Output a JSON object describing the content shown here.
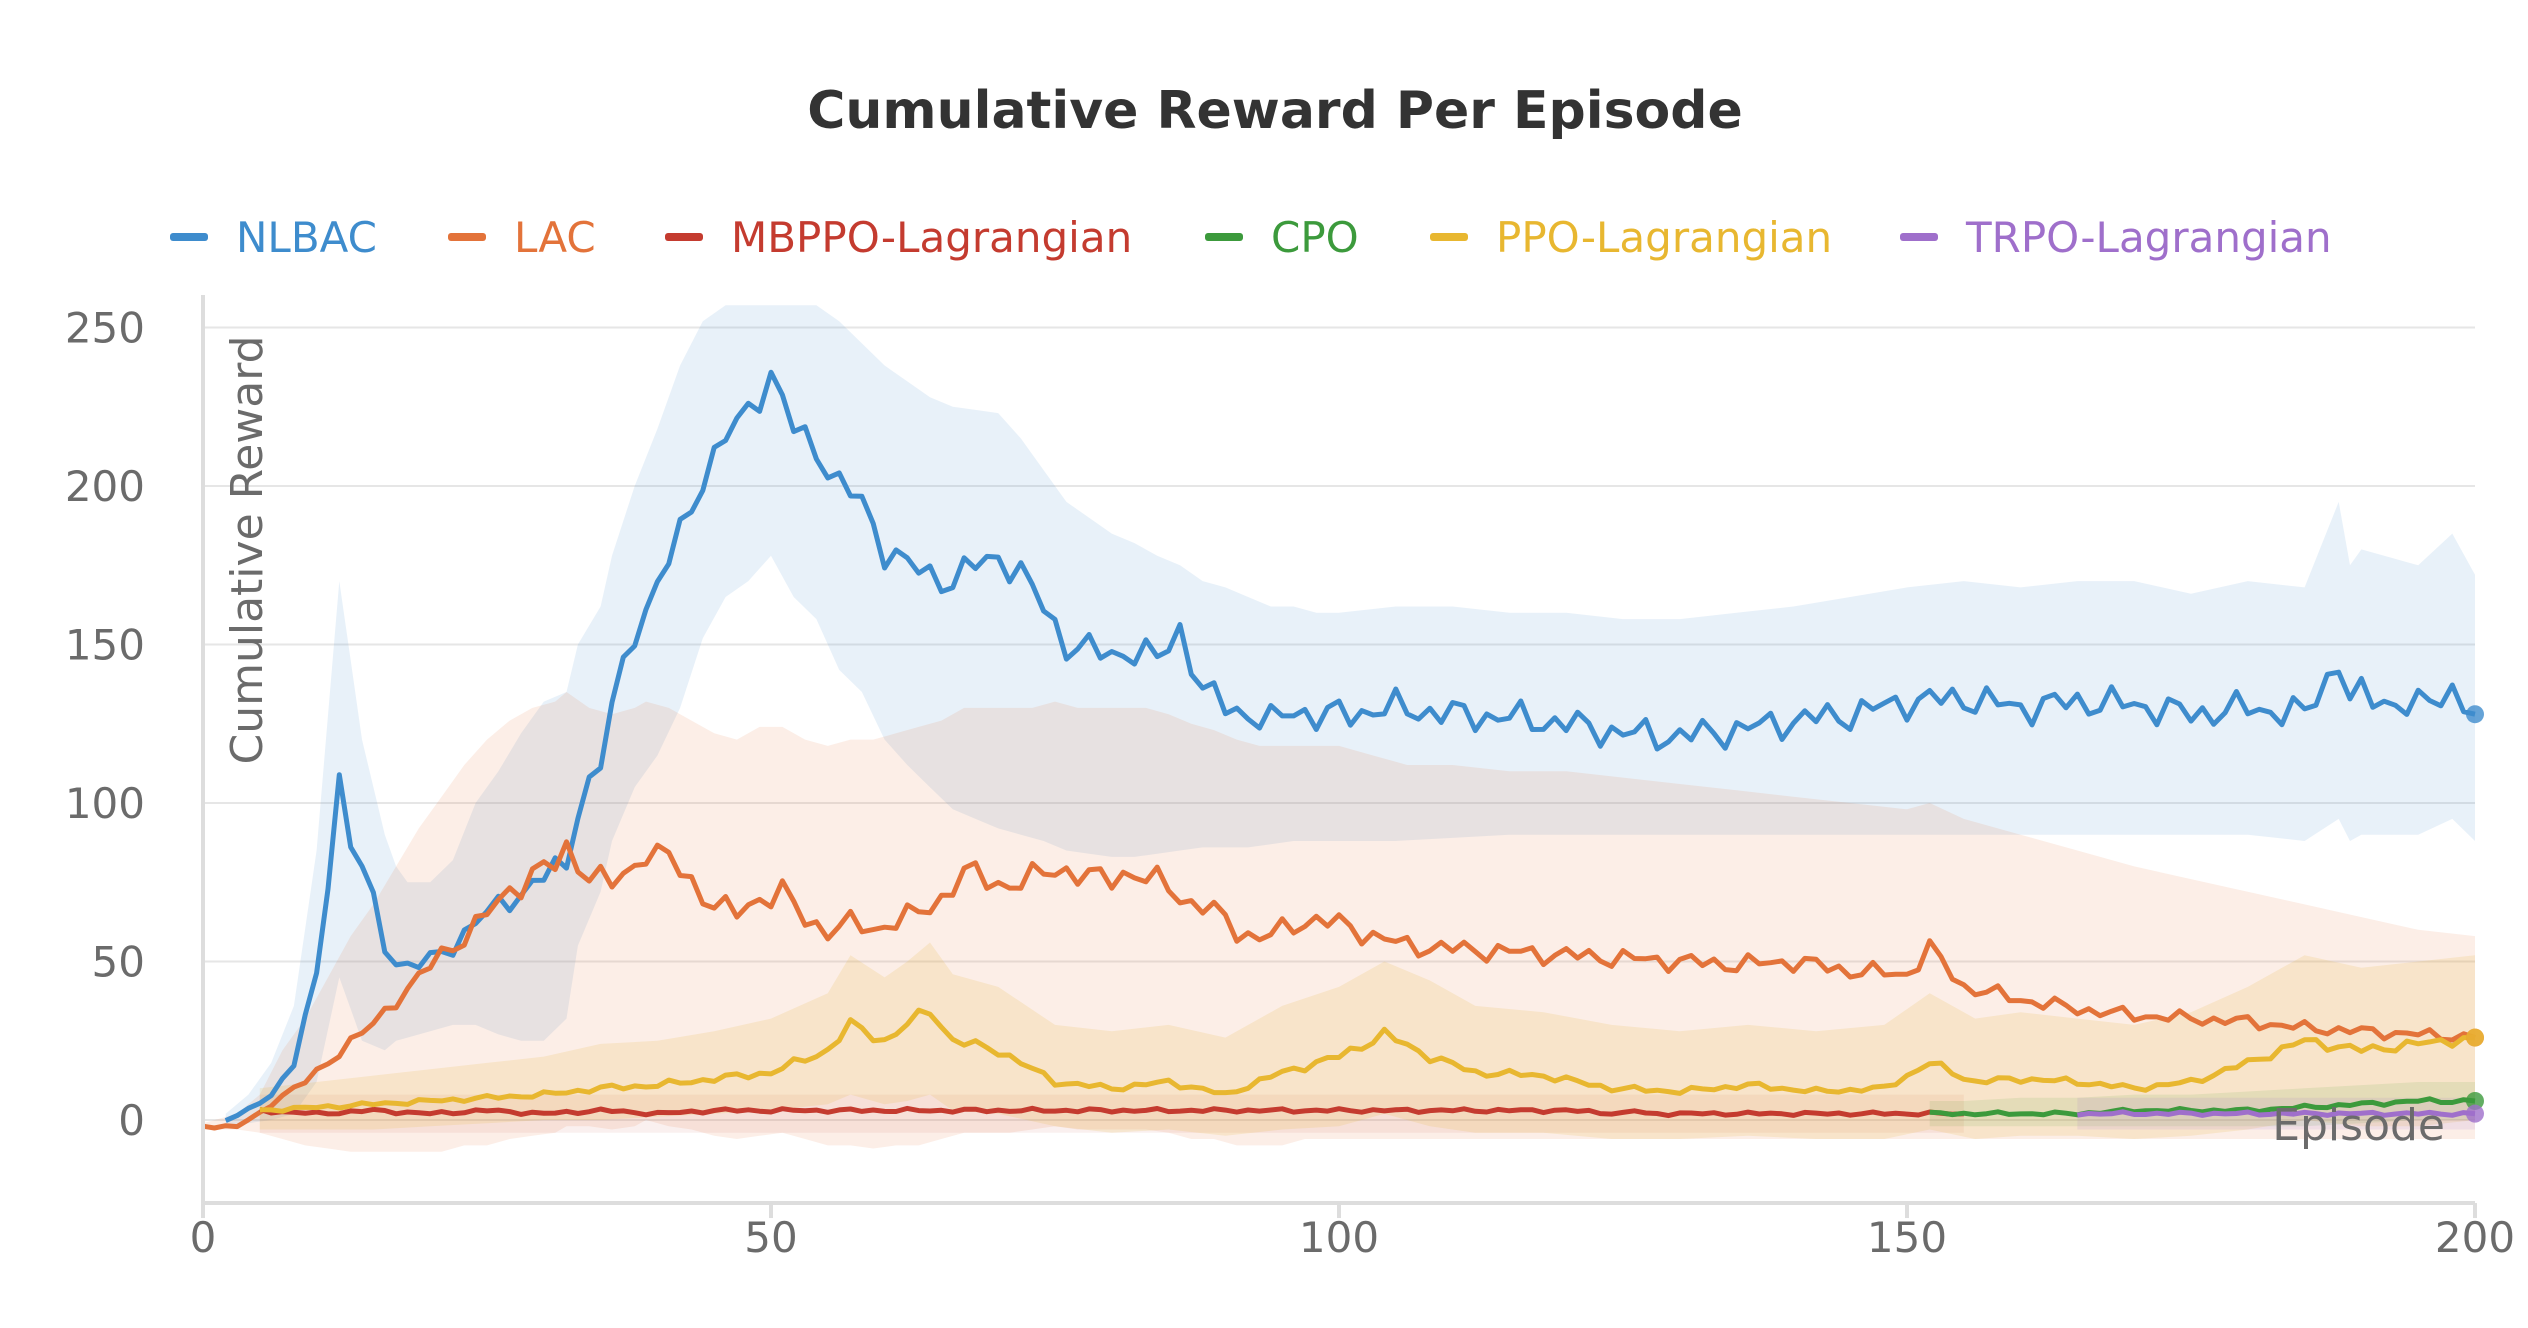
{
  "chart_data": {
    "type": "line",
    "title": "Cumulative Reward Per Episode",
    "xlabel": "Episode",
    "ylabel": "Cumulative Reward",
    "xlim": [
      0,
      200
    ],
    "ylim": [
      -12,
      258
    ],
    "xticks": [
      0,
      50,
      100,
      150,
      200
    ],
    "xtick_labels": [
      "0",
      "50",
      "100",
      "150",
      "200"
    ],
    "yticks": [
      0,
      50,
      100,
      150,
      200,
      250
    ],
    "ytick_labels": [
      "0",
      "50",
      "100",
      "150",
      "200",
      "250"
    ],
    "grid": true,
    "legend_position": "top",
    "series": [
      {
        "name": "NLBAC",
        "color": "#3e8ccd",
        "band_opacity": 0.12,
        "x": [
          2,
          4,
          6,
          8,
          10,
          12,
          13,
          14,
          16,
          17,
          18,
          20,
          22,
          24,
          26,
          28,
          30,
          32,
          33,
          35,
          36,
          38,
          40,
          42,
          44,
          46,
          48,
          50,
          52,
          54,
          56,
          58,
          60,
          62,
          64,
          66,
          68,
          70,
          72,
          74,
          76,
          78,
          80,
          82,
          84,
          86,
          88,
          90,
          92,
          94,
          96,
          98,
          100,
          105,
          110,
          115,
          120,
          125,
          130,
          135,
          140,
          145,
          150,
          155,
          160,
          165,
          170,
          175,
          180,
          185,
          188,
          189,
          190,
          195,
          198,
          200
        ],
        "values": [
          0,
          3,
          8,
          18,
          45,
          108,
          88,
          80,
          55,
          50,
          49,
          50,
          55,
          63,
          67,
          72,
          77,
          80,
          100,
          112,
          130,
          155,
          168,
          185,
          203,
          215,
          224,
          235,
          218,
          212,
          200,
          195,
          180,
          175,
          172,
          170,
          175,
          178,
          172,
          162,
          150,
          148,
          147,
          148,
          145,
          155,
          135,
          131,
          128,
          125,
          130,
          127,
          128,
          130,
          128,
          127,
          125,
          122,
          121,
          123,
          126,
          128,
          132,
          133,
          130,
          132,
          131,
          128,
          130,
          128,
          145,
          132,
          134,
          130,
          136,
          128
        ],
        "lower": [
          -2,
          -1,
          0,
          2,
          12,
          45,
          35,
          25,
          22,
          25,
          26,
          28,
          30,
          30,
          27,
          25,
          25,
          32,
          55,
          72,
          88,
          105,
          115,
          130,
          152,
          165,
          170,
          178,
          165,
          158,
          142,
          135,
          120,
          112,
          105,
          98,
          95,
          92,
          90,
          88,
          85,
          84,
          83,
          83,
          84,
          85,
          86,
          86,
          86,
          87,
          88,
          88,
          88,
          88,
          89,
          90,
          90,
          90,
          90,
          90,
          90,
          90,
          90,
          90,
          90,
          90,
          90,
          90,
          90,
          88,
          95,
          88,
          90,
          90,
          95,
          88
        ],
        "upper": [
          2,
          8,
          18,
          36,
          85,
          170,
          145,
          120,
          90,
          80,
          75,
          75,
          82,
          100,
          110,
          122,
          132,
          135,
          150,
          162,
          178,
          200,
          218,
          238,
          252,
          257,
          257,
          257,
          257,
          257,
          252,
          245,
          238,
          233,
          228,
          225,
          224,
          223,
          215,
          205,
          195,
          190,
          185,
          182,
          178,
          175,
          170,
          168,
          165,
          162,
          162,
          160,
          160,
          162,
          162,
          160,
          160,
          158,
          158,
          160,
          162,
          165,
          168,
          170,
          168,
          170,
          170,
          166,
          170,
          168,
          195,
          175,
          180,
          175,
          185,
          172
        ]
      },
      {
        "name": "LAC",
        "color": "#e3733a",
        "band_opacity": 0.12,
        "x": [
          0,
          3,
          5,
          7,
          9,
          11,
          13,
          15,
          17,
          19,
          21,
          23,
          25,
          27,
          29,
          31,
          32,
          34,
          36,
          38,
          39,
          41,
          43,
          45,
          47,
          49,
          51,
          53,
          55,
          57,
          59,
          61,
          63,
          65,
          67,
          69,
          71,
          73,
          75,
          77,
          79,
          81,
          83,
          85,
          87,
          89,
          91,
          93,
          95,
          97,
          100,
          103,
          106,
          110,
          115,
          120,
          125,
          130,
          135,
          140,
          145,
          150,
          152,
          155,
          160,
          165,
          170,
          175,
          180,
          185,
          190,
          195,
          200
        ],
        "values": [
          -2,
          -2,
          2,
          8,
          12,
          18,
          25,
          30,
          38,
          45,
          52,
          58,
          65,
          72,
          78,
          80,
          85,
          78,
          74,
          80,
          86,
          82,
          75,
          68,
          65,
          70,
          72,
          63,
          60,
          62,
          60,
          63,
          65,
          70,
          78,
          76,
          74,
          76,
          80,
          77,
          76,
          78,
          76,
          74,
          68,
          66,
          60,
          57,
          60,
          63,
          62,
          58,
          55,
          54,
          53,
          52,
          51,
          50,
          49,
          50,
          47,
          46,
          54,
          42,
          38,
          35,
          33,
          32,
          31,
          29,
          28,
          27,
          26
        ],
        "lower": [
          -3,
          -3,
          -4,
          -6,
          -8,
          -9,
          -10,
          -10,
          -10,
          -10,
          -10,
          -8,
          -8,
          -6,
          -5,
          -4,
          -2,
          -2,
          -3,
          -2,
          0,
          -2,
          -3,
          -5,
          -6,
          -5,
          -4,
          -6,
          -8,
          -8,
          -9,
          -8,
          -8,
          -6,
          -4,
          -4,
          -4,
          -3,
          -2,
          -3,
          -3,
          -3,
          -3,
          -4,
          -6,
          -6,
          -8,
          -8,
          -8,
          -6,
          -6,
          -6,
          -6,
          -6,
          -6,
          -6,
          -6,
          -6,
          -6,
          -6,
          -6,
          -6,
          -6,
          -6,
          -6,
          -6,
          -6,
          -6,
          -6,
          -6,
          -6,
          -6,
          -6
        ],
        "upper": [
          -1,
          2,
          8,
          22,
          32,
          45,
          58,
          68,
          80,
          92,
          102,
          112,
          120,
          126,
          130,
          132,
          135,
          130,
          128,
          130,
          132,
          130,
          126,
          122,
          120,
          124,
          124,
          120,
          118,
          120,
          120,
          122,
          124,
          126,
          130,
          130,
          130,
          130,
          132,
          130,
          130,
          130,
          130,
          128,
          125,
          123,
          120,
          118,
          118,
          118,
          118,
          115,
          112,
          112,
          110,
          110,
          108,
          106,
          104,
          102,
          100,
          98,
          100,
          95,
          90,
          85,
          80,
          76,
          72,
          68,
          64,
          60,
          58
        ]
      },
      {
        "name": "MBPPO-Lagrangian",
        "color": "#c43b2f",
        "band_opacity": 0.08,
        "x": [
          5,
          10,
          15,
          20,
          25,
          30,
          35,
          40,
          45,
          50,
          60,
          70,
          80,
          90,
          100,
          110,
          120,
          125,
          126,
          127,
          130,
          140,
          150,
          155
        ],
        "values": [
          3,
          2,
          3,
          2,
          3,
          2,
          3,
          2,
          3,
          3,
          3,
          3,
          3,
          3,
          3,
          3,
          3,
          2,
          3,
          2,
          2,
          2,
          2,
          2
        ],
        "lower": [
          -4,
          -4,
          -4,
          -4,
          -4,
          -4,
          -4,
          -4,
          -4,
          -4,
          -4,
          -4,
          -4,
          -4,
          -4,
          -4,
          -4,
          -4,
          -4,
          -4,
          -4,
          -4,
          -4,
          -4
        ],
        "upper": [
          8,
          8,
          8,
          8,
          8,
          8,
          8,
          8,
          8,
          8,
          8,
          8,
          8,
          8,
          8,
          8,
          8,
          8,
          8,
          8,
          8,
          8,
          8,
          8
        ]
      },
      {
        "name": "CPO",
        "color": "#3c9a3c",
        "band_opacity": 0.12,
        "x": [
          152,
          155,
          160,
          165,
          170,
          175,
          180,
          185,
          190,
          195,
          200
        ],
        "values": [
          2,
          2,
          2,
          2,
          3,
          3,
          3,
          4,
          5,
          6,
          6
        ],
        "lower": [
          -2,
          -2,
          -2,
          -2,
          -2,
          -2,
          -2,
          -2,
          -1,
          0,
          0
        ],
        "upper": [
          6,
          6,
          7,
          7,
          8,
          8,
          9,
          10,
          11,
          12,
          12
        ]
      },
      {
        "name": "PPO-Lagrangian",
        "color": "#e8b730",
        "band_opacity": 0.16,
        "x": [
          5,
          10,
          15,
          20,
          25,
          30,
          35,
          40,
          45,
          50,
          55,
          57,
          60,
          62,
          64,
          66,
          70,
          75,
          80,
          85,
          90,
          95,
          100,
          104,
          108,
          112,
          118,
          124,
          130,
          136,
          142,
          148,
          152,
          156,
          160,
          165,
          170,
          175,
          180,
          185,
          190,
          195,
          200
        ],
        "values": [
          3,
          4,
          5,
          6,
          7,
          8,
          10,
          11,
          13,
          15,
          22,
          30,
          25,
          30,
          35,
          25,
          22,
          12,
          10,
          12,
          8,
          15,
          20,
          27,
          20,
          15,
          14,
          10,
          9,
          11,
          9,
          10,
          18,
          12,
          13,
          12,
          10,
          12,
          18,
          25,
          22,
          24,
          26
        ],
        "lower": [
          -3,
          -3,
          -3,
          -2,
          -1,
          0,
          0,
          1,
          2,
          3,
          5,
          8,
          5,
          6,
          8,
          3,
          2,
          -2,
          -4,
          -3,
          -5,
          -3,
          -2,
          2,
          -2,
          -4,
          -4,
          -6,
          -6,
          -5,
          -6,
          -6,
          -3,
          -6,
          -5,
          -5,
          -6,
          -5,
          -3,
          0,
          -2,
          -2,
          0
        ],
        "upper": [
          10,
          12,
          14,
          16,
          18,
          20,
          24,
          25,
          28,
          32,
          40,
          52,
          45,
          50,
          56,
          46,
          42,
          30,
          28,
          30,
          26,
          36,
          42,
          50,
          44,
          36,
          34,
          30,
          28,
          30,
          28,
          30,
          40,
          32,
          34,
          32,
          30,
          34,
          42,
          52,
          48,
          50,
          52
        ]
      },
      {
        "name": "TRPO-Lagrangian",
        "color": "#9f6fcb",
        "band_opacity": 0.12,
        "x": [
          165,
          170,
          175,
          180,
          185,
          190,
          195,
          200
        ],
        "values": [
          2,
          2,
          2,
          2,
          2,
          2,
          2,
          2
        ],
        "lower": [
          -3,
          -3,
          -3,
          -3,
          -3,
          -3,
          -3,
          -3
        ],
        "upper": [
          7,
          7,
          7,
          7,
          7,
          7,
          7,
          7
        ]
      }
    ]
  }
}
